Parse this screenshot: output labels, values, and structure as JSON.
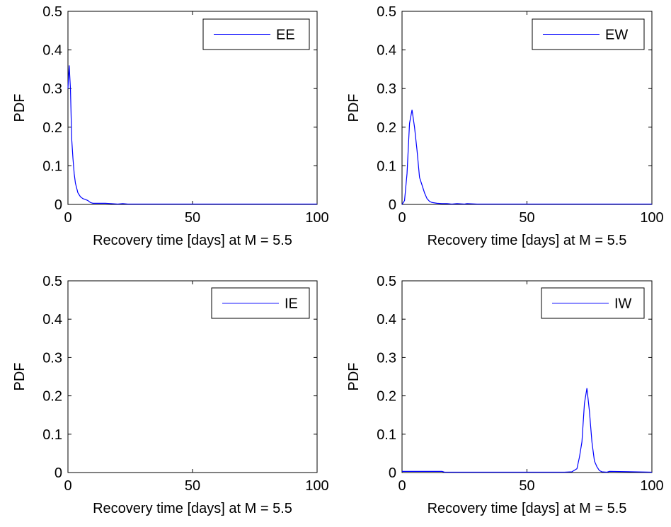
{
  "chart_data": [
    {
      "type": "line",
      "xlabel": "Recovery time [days] at M = 5.5",
      "ylabel": "PDF",
      "xlim": [
        0,
        100
      ],
      "ylim": [
        0,
        0.5
      ],
      "xticks": [
        "0",
        "50",
        "100"
      ],
      "yticks": [
        "0",
        "0.1",
        "0.2",
        "0.3",
        "0.4",
        "0.5"
      ],
      "legend_position": "top-right",
      "grid": false,
      "series": [
        {
          "name": "EE",
          "color": "#0000ff",
          "x": [
            0,
            0.5,
            1,
            1.5,
            2,
            2.5,
            3,
            4,
            5,
            6,
            7,
            8,
            9,
            10,
            15,
            20,
            22,
            24,
            30,
            50,
            100
          ],
          "y": [
            0.3,
            0.36,
            0.3,
            0.17,
            0.12,
            0.08,
            0.055,
            0.03,
            0.02,
            0.015,
            0.013,
            0.01,
            0.005,
            0.003,
            0.003,
            0.001,
            0.002,
            0.001,
            0.001,
            0.001,
            0.001
          ]
        }
      ]
    },
    {
      "type": "line",
      "xlabel": "Recovery time [days] at M = 5.5",
      "ylabel": "PDF",
      "xlim": [
        0,
        100
      ],
      "ylim": [
        0,
        0.5
      ],
      "xticks": [
        "0",
        "50",
        "100"
      ],
      "yticks": [
        "0",
        "0.1",
        "0.2",
        "0.3",
        "0.4",
        "0.5"
      ],
      "legend_position": "top-right",
      "grid": false,
      "series": [
        {
          "name": "EW",
          "color": "#0000ff",
          "x": [
            0,
            1,
            2,
            3,
            4,
            5,
            6,
            7,
            8,
            9,
            10,
            11,
            12,
            14,
            16,
            18,
            20,
            22,
            25,
            26,
            30,
            50,
            100
          ],
          "y": [
            0.0,
            0.01,
            0.08,
            0.21,
            0.245,
            0.2,
            0.14,
            0.07,
            0.05,
            0.03,
            0.015,
            0.008,
            0.005,
            0.003,
            0.002,
            0.002,
            0.001,
            0.002,
            0.001,
            0.002,
            0.001,
            0.001,
            0.001
          ]
        }
      ]
    },
    {
      "type": "line",
      "xlabel": "Recovery time [days] at M = 5.5",
      "ylabel": "PDF",
      "xlim": [
        0,
        100
      ],
      "ylim": [
        0,
        0.5
      ],
      "xticks": [
        "0",
        "50",
        "100"
      ],
      "yticks": [
        "0",
        "0.1",
        "0.2",
        "0.3",
        "0.4",
        "0.5"
      ],
      "legend_position": "top-right",
      "grid": false,
      "series": [
        {
          "name": "IE",
          "color": "#0000ff",
          "x": [],
          "y": []
        }
      ]
    },
    {
      "type": "line",
      "xlabel": "Recovery time [days] at M = 5.5",
      "ylabel": "PDF",
      "xlim": [
        0,
        100
      ],
      "ylim": [
        0,
        0.5
      ],
      "xticks": [
        "0",
        "50",
        "100"
      ],
      "yticks": [
        "0",
        "0.1",
        "0.2",
        "0.3",
        "0.4",
        "0.5"
      ],
      "legend_position": "top-right",
      "grid": false,
      "series": [
        {
          "name": "IW",
          "color": "#0000ff",
          "x": [
            0,
            16,
            17,
            50,
            65,
            68,
            70,
            71,
            72,
            73,
            74,
            75,
            76,
            77,
            78,
            79,
            80,
            82,
            83,
            100
          ],
          "y": [
            0.003,
            0.003,
            0.001,
            0.001,
            0.001,
            0.002,
            0.01,
            0.04,
            0.08,
            0.18,
            0.22,
            0.16,
            0.08,
            0.03,
            0.015,
            0.005,
            0.002,
            0.001,
            0.003,
            0.001
          ]
        }
      ]
    }
  ]
}
